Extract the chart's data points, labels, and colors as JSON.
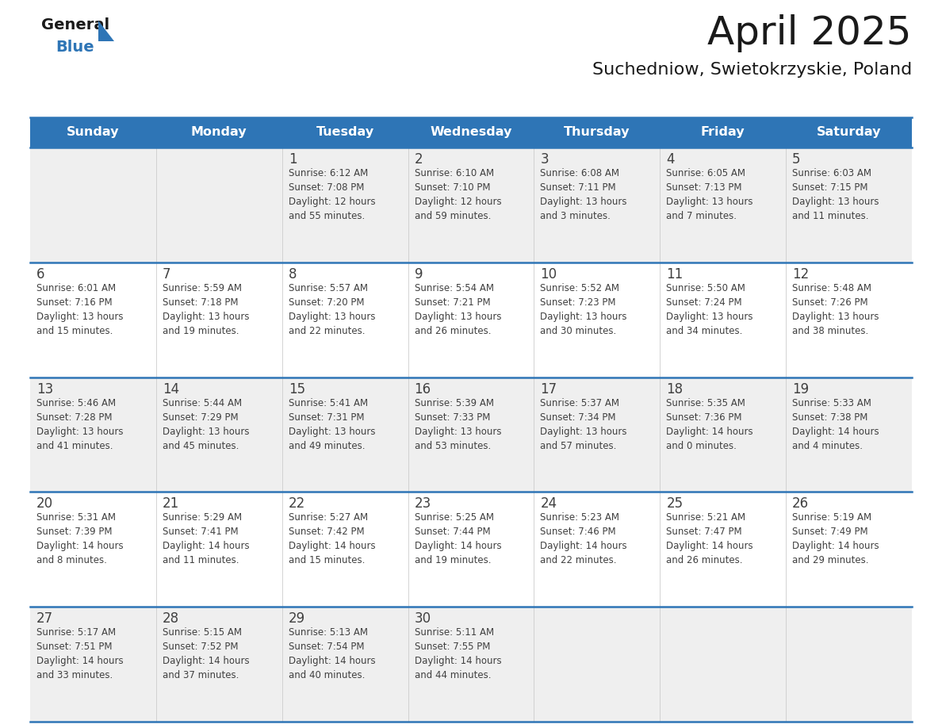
{
  "title": "April 2025",
  "subtitle": "Suchedniow, Swietokrzyskie, Poland",
  "days_of_week": [
    "Sunday",
    "Monday",
    "Tuesday",
    "Wednesday",
    "Thursday",
    "Friday",
    "Saturday"
  ],
  "header_bg": "#2E75B6",
  "header_text": "#FFFFFF",
  "cell_bg_light": "#EFEFEF",
  "cell_bg_white": "#FFFFFF",
  "row_sep_color": "#2E75B6",
  "text_color": "#404040",
  "title_color": "#1a1a1a",
  "logo_general_color": "#1a1a1a",
  "logo_blue_color": "#2E75B6",
  "logo_triangle_color": "#2E75B6",
  "calendar_data": [
    [
      {
        "day": null,
        "info": null
      },
      {
        "day": null,
        "info": null
      },
      {
        "day": "1",
        "info": "Sunrise: 6:12 AM\nSunset: 7:08 PM\nDaylight: 12 hours\nand 55 minutes."
      },
      {
        "day": "2",
        "info": "Sunrise: 6:10 AM\nSunset: 7:10 PM\nDaylight: 12 hours\nand 59 minutes."
      },
      {
        "day": "3",
        "info": "Sunrise: 6:08 AM\nSunset: 7:11 PM\nDaylight: 13 hours\nand 3 minutes."
      },
      {
        "day": "4",
        "info": "Sunrise: 6:05 AM\nSunset: 7:13 PM\nDaylight: 13 hours\nand 7 minutes."
      },
      {
        "day": "5",
        "info": "Sunrise: 6:03 AM\nSunset: 7:15 PM\nDaylight: 13 hours\nand 11 minutes."
      }
    ],
    [
      {
        "day": "6",
        "info": "Sunrise: 6:01 AM\nSunset: 7:16 PM\nDaylight: 13 hours\nand 15 minutes."
      },
      {
        "day": "7",
        "info": "Sunrise: 5:59 AM\nSunset: 7:18 PM\nDaylight: 13 hours\nand 19 minutes."
      },
      {
        "day": "8",
        "info": "Sunrise: 5:57 AM\nSunset: 7:20 PM\nDaylight: 13 hours\nand 22 minutes."
      },
      {
        "day": "9",
        "info": "Sunrise: 5:54 AM\nSunset: 7:21 PM\nDaylight: 13 hours\nand 26 minutes."
      },
      {
        "day": "10",
        "info": "Sunrise: 5:52 AM\nSunset: 7:23 PM\nDaylight: 13 hours\nand 30 minutes."
      },
      {
        "day": "11",
        "info": "Sunrise: 5:50 AM\nSunset: 7:24 PM\nDaylight: 13 hours\nand 34 minutes."
      },
      {
        "day": "12",
        "info": "Sunrise: 5:48 AM\nSunset: 7:26 PM\nDaylight: 13 hours\nand 38 minutes."
      }
    ],
    [
      {
        "day": "13",
        "info": "Sunrise: 5:46 AM\nSunset: 7:28 PM\nDaylight: 13 hours\nand 41 minutes."
      },
      {
        "day": "14",
        "info": "Sunrise: 5:44 AM\nSunset: 7:29 PM\nDaylight: 13 hours\nand 45 minutes."
      },
      {
        "day": "15",
        "info": "Sunrise: 5:41 AM\nSunset: 7:31 PM\nDaylight: 13 hours\nand 49 minutes."
      },
      {
        "day": "16",
        "info": "Sunrise: 5:39 AM\nSunset: 7:33 PM\nDaylight: 13 hours\nand 53 minutes."
      },
      {
        "day": "17",
        "info": "Sunrise: 5:37 AM\nSunset: 7:34 PM\nDaylight: 13 hours\nand 57 minutes."
      },
      {
        "day": "18",
        "info": "Sunrise: 5:35 AM\nSunset: 7:36 PM\nDaylight: 14 hours\nand 0 minutes."
      },
      {
        "day": "19",
        "info": "Sunrise: 5:33 AM\nSunset: 7:38 PM\nDaylight: 14 hours\nand 4 minutes."
      }
    ],
    [
      {
        "day": "20",
        "info": "Sunrise: 5:31 AM\nSunset: 7:39 PM\nDaylight: 14 hours\nand 8 minutes."
      },
      {
        "day": "21",
        "info": "Sunrise: 5:29 AM\nSunset: 7:41 PM\nDaylight: 14 hours\nand 11 minutes."
      },
      {
        "day": "22",
        "info": "Sunrise: 5:27 AM\nSunset: 7:42 PM\nDaylight: 14 hours\nand 15 minutes."
      },
      {
        "day": "23",
        "info": "Sunrise: 5:25 AM\nSunset: 7:44 PM\nDaylight: 14 hours\nand 19 minutes."
      },
      {
        "day": "24",
        "info": "Sunrise: 5:23 AM\nSunset: 7:46 PM\nDaylight: 14 hours\nand 22 minutes."
      },
      {
        "day": "25",
        "info": "Sunrise: 5:21 AM\nSunset: 7:47 PM\nDaylight: 14 hours\nand 26 minutes."
      },
      {
        "day": "26",
        "info": "Sunrise: 5:19 AM\nSunset: 7:49 PM\nDaylight: 14 hours\nand 29 minutes."
      }
    ],
    [
      {
        "day": "27",
        "info": "Sunrise: 5:17 AM\nSunset: 7:51 PM\nDaylight: 14 hours\nand 33 minutes."
      },
      {
        "day": "28",
        "info": "Sunrise: 5:15 AM\nSunset: 7:52 PM\nDaylight: 14 hours\nand 37 minutes."
      },
      {
        "day": "29",
        "info": "Sunrise: 5:13 AM\nSunset: 7:54 PM\nDaylight: 14 hours\nand 40 minutes."
      },
      {
        "day": "30",
        "info": "Sunrise: 5:11 AM\nSunset: 7:55 PM\nDaylight: 14 hours\nand 44 minutes."
      },
      {
        "day": null,
        "info": null
      },
      {
        "day": null,
        "info": null
      },
      {
        "day": null,
        "info": null
      }
    ]
  ]
}
